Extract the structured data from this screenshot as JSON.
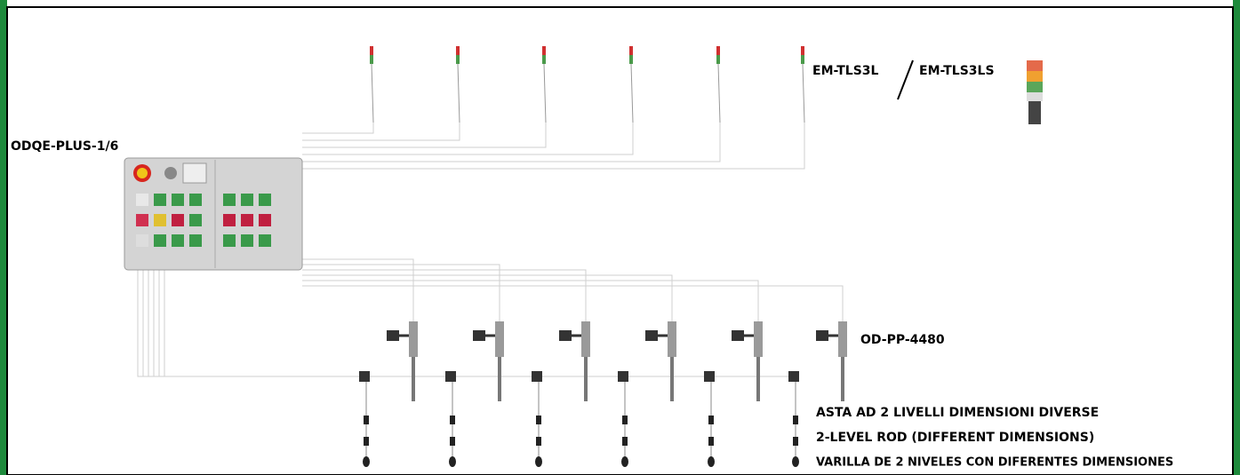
{
  "labels": {
    "panel": "ODQE-PLUS-1/6",
    "tower_a": "EM-TLS3L",
    "tower_b": "EM-TLS3LS",
    "pump": "OD-PP-4480",
    "rod_it": "ASTA AD 2 LIVELLI DIMENSIONI DIVERSE",
    "rod_en": "2-LEVEL ROD (DIFFERENT DIMENSIONS)",
    "rod_es": "VARILLA DE 2 NIVELES CON DIFERENTES DIMENSIONES"
  }
}
